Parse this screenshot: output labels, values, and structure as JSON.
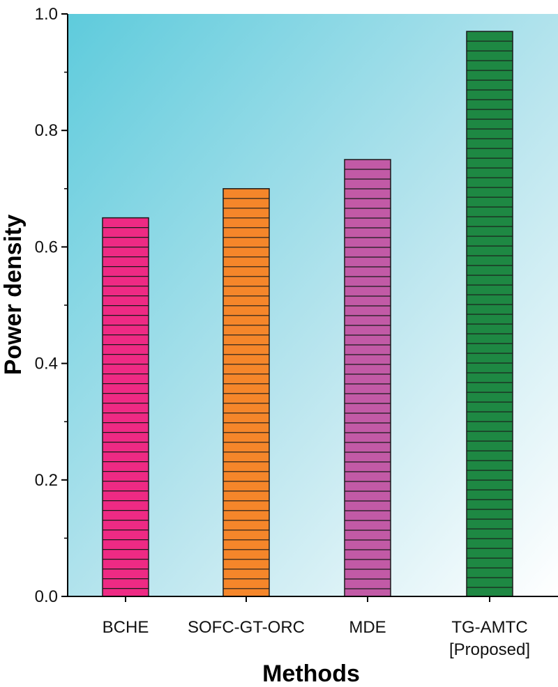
{
  "chart_data": {
    "type": "bar",
    "title": "",
    "xlabel": "Methods",
    "ylabel": "Power density",
    "ylim": [
      0,
      1.0
    ],
    "yticks": [
      "0.0",
      "0.2",
      "0.4",
      "0.6",
      "0.8",
      "1.0"
    ],
    "categories": [
      {
        "line1": "BCHE",
        "line2": ""
      },
      {
        "line1": "SOFC-GT-ORC",
        "line2": ""
      },
      {
        "line1": "MDE",
        "line2": ""
      },
      {
        "line1": "TG-AMTC",
        "line2": "[Proposed]"
      }
    ],
    "values": [
      0.65,
      0.7,
      0.75,
      0.97
    ],
    "colors": [
      "#ee2a84",
      "#f5862a",
      "#c25aa6",
      "#1e8843"
    ],
    "hatch": "horizontal-lines",
    "grid": false
  }
}
